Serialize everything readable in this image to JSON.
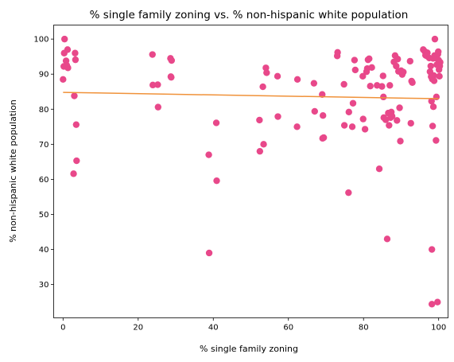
{
  "colors": {
    "points": "#e8488a",
    "trend": "#f0923a",
    "axis": "#000000"
  },
  "chart_data": {
    "type": "scatter",
    "title": "% single family zoning vs. % non-hispanic white population",
    "xlabel": "% single family zoning",
    "ylabel": "% non-hispanic white population",
    "xlim": [
      -2.5,
      102.5
    ],
    "ylim": [
      20.5,
      104
    ],
    "xticks": [
      0,
      20,
      40,
      60,
      80,
      100
    ],
    "yticks": [
      30,
      40,
      50,
      60,
      70,
      80,
      90,
      100
    ],
    "xtick_labels": [
      "0",
      "20",
      "40",
      "60",
      "80",
      "100"
    ],
    "ytick_labels": [
      "30",
      "40",
      "50",
      "60",
      "70",
      "80",
      "90",
      "100"
    ],
    "trendline": {
      "x": [
        0,
        100
      ],
      "y": [
        84.8,
        83.0
      ]
    },
    "points": [
      [
        0.0,
        88.5
      ],
      [
        0.2,
        92.2
      ],
      [
        0.3,
        96.0
      ],
      [
        0.4,
        100.0
      ],
      [
        0.8,
        93.8
      ],
      [
        1.0,
        92.5
      ],
      [
        1.2,
        97.0
      ],
      [
        1.3,
        91.8
      ],
      [
        2.8,
        61.6
      ],
      [
        3.0,
        83.8
      ],
      [
        3.2,
        96.0
      ],
      [
        3.3,
        94.1
      ],
      [
        3.5,
        75.6
      ],
      [
        3.6,
        65.3
      ],
      [
        23.8,
        95.6
      ],
      [
        23.9,
        86.9
      ],
      [
        25.2,
        87.0
      ],
      [
        25.3,
        80.6
      ],
      [
        28.6,
        94.5
      ],
      [
        28.7,
        89.3
      ],
      [
        28.8,
        89.1
      ],
      [
        28.9,
        93.9
      ],
      [
        38.8,
        67.0
      ],
      [
        38.9,
        39.0
      ],
      [
        40.8,
        76.1
      ],
      [
        40.9,
        59.6
      ],
      [
        52.3,
        76.9
      ],
      [
        52.4,
        68.0
      ],
      [
        53.2,
        86.4
      ],
      [
        53.4,
        70.0
      ],
      [
        54.0,
        91.8
      ],
      [
        54.2,
        90.4
      ],
      [
        57.1,
        89.4
      ],
      [
        57.2,
        77.9
      ],
      [
        62.3,
        75.0
      ],
      [
        62.4,
        88.5
      ],
      [
        66.8,
        87.4
      ],
      [
        67.0,
        79.4
      ],
      [
        69.0,
        84.2
      ],
      [
        69.1,
        71.7
      ],
      [
        69.2,
        78.2
      ],
      [
        69.4,
        71.9
      ],
      [
        73.0,
        95.2
      ],
      [
        73.1,
        96.2
      ],
      [
        74.8,
        87.1
      ],
      [
        74.9,
        75.4
      ],
      [
        76.0,
        56.2
      ],
      [
        76.1,
        79.2
      ],
      [
        77.0,
        75.0
      ],
      [
        77.2,
        81.7
      ],
      [
        77.6,
        94.0
      ],
      [
        77.8,
        91.2
      ],
      [
        79.8,
        89.4
      ],
      [
        79.9,
        77.2
      ],
      [
        80.4,
        74.3
      ],
      [
        80.8,
        90.7
      ],
      [
        81.0,
        91.6
      ],
      [
        81.2,
        94.1
      ],
      [
        81.5,
        94.4
      ],
      [
        81.8,
        86.6
      ],
      [
        82.2,
        91.9
      ],
      [
        83.6,
        86.8
      ],
      [
        84.2,
        63.0
      ],
      [
        84.9,
        86.5
      ],
      [
        85.2,
        89.5
      ],
      [
        85.3,
        83.5
      ],
      [
        85.4,
        77.6
      ],
      [
        85.9,
        77.0
      ],
      [
        86.3,
        43.0
      ],
      [
        86.6,
        78.9
      ],
      [
        86.8,
        75.4
      ],
      [
        87.0,
        86.8
      ],
      [
        87.2,
        77.6
      ],
      [
        87.4,
        79.2
      ],
      [
        87.6,
        78.0
      ],
      [
        88.1,
        93.5
      ],
      [
        88.4,
        95.3
      ],
      [
        88.7,
        92.3
      ],
      [
        88.9,
        76.8
      ],
      [
        89.1,
        94.3
      ],
      [
        89.3,
        90.8
      ],
      [
        89.6,
        80.4
      ],
      [
        89.8,
        70.9
      ],
      [
        90.0,
        91.0
      ],
      [
        90.3,
        89.9
      ],
      [
        90.6,
        90.6
      ],
      [
        92.4,
        93.7
      ],
      [
        92.6,
        76.0
      ],
      [
        92.8,
        88.0
      ],
      [
        93.0,
        87.6
      ],
      [
        95.9,
        97.0
      ],
      [
        96.3,
        96.5
      ],
      [
        96.5,
        95.4
      ],
      [
        96.8,
        95.2
      ],
      [
        97.0,
        96.1
      ],
      [
        97.5,
        94.6
      ],
      [
        97.7,
        90.7
      ],
      [
        97.9,
        92.3
      ],
      [
        98.0,
        89.3
      ],
      [
        98.1,
        82.3
      ],
      [
        98.2,
        40.0
      ],
      [
        98.2,
        24.4
      ],
      [
        98.3,
        88.6
      ],
      [
        98.4,
        75.2
      ],
      [
        98.5,
        94.5
      ],
      [
        98.6,
        80.7
      ],
      [
        98.7,
        89.6
      ],
      [
        98.8,
        88.1
      ],
      [
        98.9,
        95.3
      ],
      [
        99.0,
        100.0
      ],
      [
        99.2,
        94.6
      ],
      [
        99.3,
        71.1
      ],
      [
        99.4,
        83.5
      ],
      [
        99.5,
        92.7
      ],
      [
        99.7,
        25.0
      ],
      [
        99.8,
        95.7
      ],
      [
        99.9,
        96.4
      ],
      [
        100.0,
        94.0
      ],
      [
        100.1,
        91.3
      ],
      [
        100.2,
        89.4
      ],
      [
        100.3,
        92.3
      ],
      [
        100.4,
        93.4
      ]
    ]
  }
}
